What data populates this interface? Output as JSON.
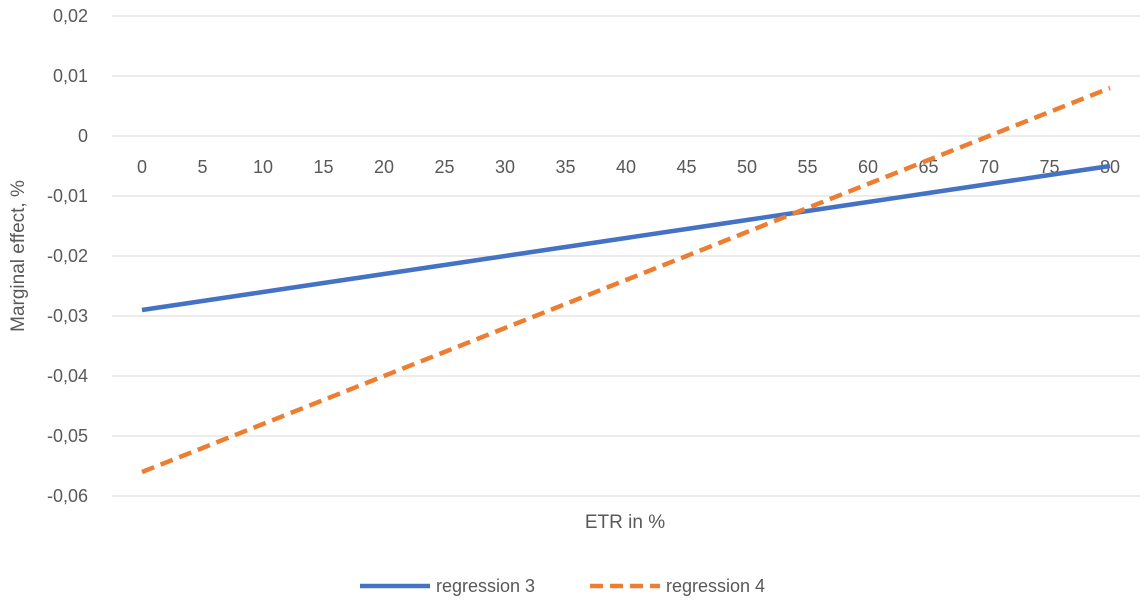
{
  "chart_data": {
    "type": "line",
    "title": "",
    "xlabel": "ETR in %",
    "ylabel": "Marginal effect, %",
    "categories": [
      0,
      5,
      10,
      15,
      20,
      25,
      30,
      35,
      40,
      45,
      50,
      55,
      60,
      65,
      70,
      75,
      80
    ],
    "x_tick_labels": [
      "0",
      "5",
      "10",
      "15",
      "20",
      "25",
      "30",
      "35",
      "40",
      "45",
      "50",
      "55",
      "60",
      "65",
      "70",
      "75",
      "80"
    ],
    "y_tick_values": [
      0.02,
      0.01,
      0,
      -0.01,
      -0.02,
      -0.03,
      -0.04,
      -0.05,
      -0.06
    ],
    "y_tick_labels": [
      "0,02",
      "0,01",
      "0",
      "-0,01",
      "-0,02",
      "-0,03",
      "-0,04",
      "-0,05",
      "-0,06"
    ],
    "ylim": [
      -0.06,
      0.02
    ],
    "xlim": [
      0,
      80
    ],
    "grid": "horizontal",
    "legend_position": "bottom",
    "series": [
      {
        "name": "regression 3",
        "style": "solid",
        "color": "#4472C4",
        "x": [
          0,
          5,
          10,
          15,
          20,
          25,
          30,
          35,
          40,
          45,
          50,
          55,
          60,
          65,
          70,
          75,
          80
        ],
        "values": [
          -0.029,
          -0.0275,
          -0.026,
          -0.0245,
          -0.023,
          -0.0215,
          -0.02,
          -0.0185,
          -0.017,
          -0.0155,
          -0.014,
          -0.0125,
          -0.011,
          -0.0095,
          -0.008,
          -0.0065,
          -0.005
        ]
      },
      {
        "name": "regression 4",
        "style": "dashed",
        "color": "#ED7D31",
        "x": [
          0,
          5,
          10,
          15,
          20,
          25,
          30,
          35,
          40,
          45,
          50,
          55,
          60,
          65,
          70,
          75,
          80
        ],
        "values": [
          -0.056,
          -0.052,
          -0.048,
          -0.044,
          -0.04,
          -0.036,
          -0.032,
          -0.028,
          -0.024,
          -0.02,
          -0.016,
          -0.012,
          -0.008,
          -0.004,
          0.0,
          0.004,
          0.008
        ]
      }
    ]
  }
}
